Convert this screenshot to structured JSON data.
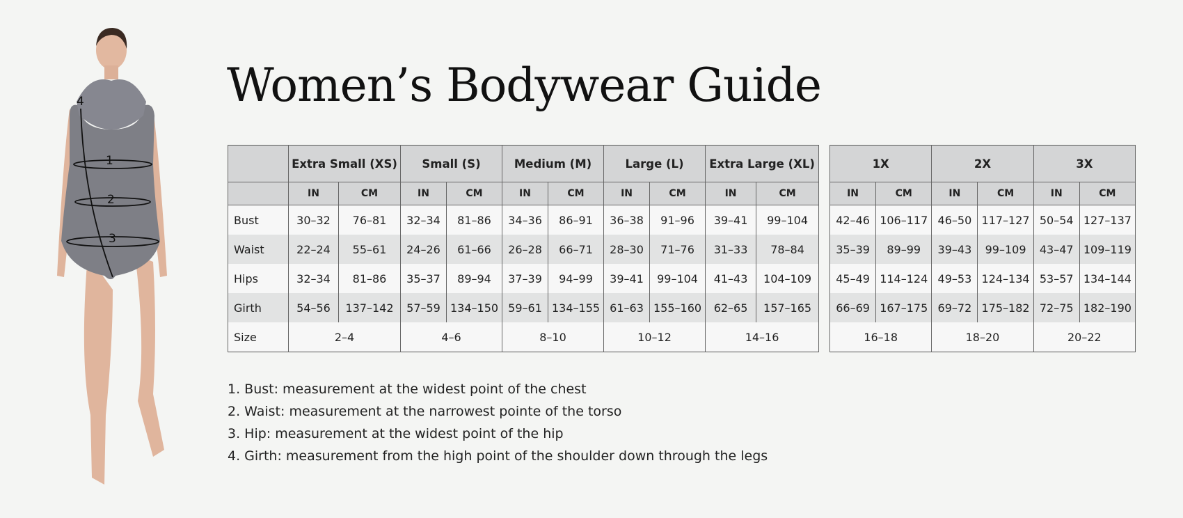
{
  "title": "Women’s Bodywear Guide",
  "figure": {
    "markers": [
      "1",
      "2",
      "3",
      "4"
    ]
  },
  "unit_labels": [
    "IN",
    "CM"
  ],
  "row_labels": [
    "Bust",
    "Waist",
    "Hips",
    "Girth",
    "Size"
  ],
  "table_main": {
    "sizes": [
      {
        "name": "Extra Small (XS)",
        "bust": [
          "30-32",
          "76-81"
        ],
        "waist": [
          "22-24",
          "55-61"
        ],
        "hips": [
          "32-34",
          "81-86"
        ],
        "girth": [
          "54-56",
          "137-142"
        ],
        "size": "2-4"
      },
      {
        "name": "Small (S)",
        "bust": [
          "32-34",
          "81-86"
        ],
        "waist": [
          "24-26",
          "61-66"
        ],
        "hips": [
          "35-37",
          "89-94"
        ],
        "girth": [
          "57-59",
          "134-150"
        ],
        "size": "4-6"
      },
      {
        "name": "Medium (M)",
        "bust": [
          "34-36",
          "86-91"
        ],
        "waist": [
          "26-28",
          "66-71"
        ],
        "hips": [
          "37-39",
          "94-99"
        ],
        "girth": [
          "59-61",
          "134-155"
        ],
        "size": "8-10"
      },
      {
        "name": "Large (L)",
        "bust": [
          "36-38",
          "91-96"
        ],
        "waist": [
          "28-30",
          "71-76"
        ],
        "hips": [
          "39-41",
          "99-104"
        ],
        "girth": [
          "61-63",
          "155-160"
        ],
        "size": "10-12"
      },
      {
        "name": "Extra Large (XL)",
        "bust": [
          "39-41",
          "99-104"
        ],
        "waist": [
          "31-33",
          "78-84"
        ],
        "hips": [
          "41-43",
          "104-109"
        ],
        "girth": [
          "62-65",
          "157-165"
        ],
        "size": "14-16"
      }
    ]
  },
  "table_plus": {
    "sizes": [
      {
        "name": "1X",
        "bust": [
          "42-46",
          "106-117"
        ],
        "waist": [
          "35-39",
          "89-99"
        ],
        "hips": [
          "45-49",
          "114-124"
        ],
        "girth": [
          "66-69",
          "167-175"
        ],
        "size": "16-18"
      },
      {
        "name": "2X",
        "bust": [
          "46-50",
          "117-127"
        ],
        "waist": [
          "39-43",
          "99-109"
        ],
        "hips": [
          "49-53",
          "124-134"
        ],
        "girth": [
          "69-72",
          "175-182"
        ],
        "size": "18-20"
      },
      {
        "name": "3X",
        "bust": [
          "50-54",
          "127-137"
        ],
        "waist": [
          "43-47",
          "109-119"
        ],
        "hips": [
          "53-57",
          "134-144"
        ],
        "girth": [
          "72-75",
          "182-190"
        ],
        "size": "20-22"
      }
    ]
  },
  "notes": [
    "1. Bust: measurement at the widest point of the chest",
    "2. Waist: measurement at the narrowest pointe of the torso",
    "3. Hip: measurement at the widest point of the hip",
    "4. Girth: measurement from the high point of the shoulder down through the legs"
  ]
}
